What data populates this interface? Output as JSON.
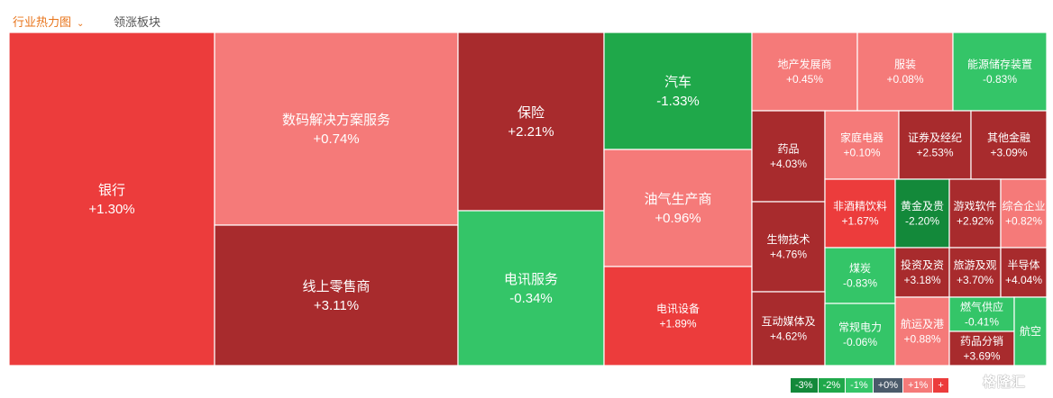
{
  "tabs": [
    {
      "label": "行业热力图",
      "active": true
    },
    {
      "label": "领涨板块",
      "active": false
    }
  ],
  "colors": {
    "up_strong": "#a82b2d",
    "up_medium": "#ec3c3c",
    "up_light": "#f57a79",
    "down_strong": "#13893a",
    "down_medium": "#1fa84a",
    "down_light": "#34c568",
    "tab_active": "#e8741a"
  },
  "chart_data": {
    "type": "treemap",
    "title": "",
    "cells": [
      {
        "name": "银行",
        "change": "+1.30%",
        "value": 1.3
      },
      {
        "name": "数码解决方案服务",
        "change": "+0.74%",
        "value": 0.74
      },
      {
        "name": "线上零售商",
        "change": "+3.11%",
        "value": 3.11
      },
      {
        "name": "保险",
        "change": "+2.21%",
        "value": 2.21
      },
      {
        "name": "电讯服务",
        "change": "-0.34%",
        "value": -0.34
      },
      {
        "name": "汽车",
        "change": "-1.33%",
        "value": -1.33
      },
      {
        "name": "油气生产商",
        "change": "+0.96%",
        "value": 0.96
      },
      {
        "name": "电讯设备",
        "change": "+1.89%",
        "value": 1.89
      },
      {
        "name": "地产发展商",
        "change": "+0.45%",
        "value": 0.45
      },
      {
        "name": "服装",
        "change": "+0.08%",
        "value": 0.08
      },
      {
        "name": "能源储存装置",
        "change": "-0.83%",
        "value": -0.83
      },
      {
        "name": "药品",
        "change": "+4.03%",
        "value": 4.03
      },
      {
        "name": "家庭电器",
        "change": "+0.10%",
        "value": 0.1
      },
      {
        "name": "证券及经纪",
        "change": "+2.53%",
        "value": 2.53
      },
      {
        "name": "其他金融",
        "change": "+3.09%",
        "value": 3.09
      },
      {
        "name": "生物技术",
        "change": "+4.76%",
        "value": 4.76
      },
      {
        "name": "非酒精饮料",
        "change": "+1.67%",
        "value": 1.67
      },
      {
        "name": "黄金及贵",
        "change": "-2.20%",
        "value": -2.2
      },
      {
        "name": "游戏软件",
        "change": "+2.92%",
        "value": 2.92
      },
      {
        "name": "综合企业",
        "change": "+0.82%",
        "value": 0.82
      },
      {
        "name": "煤炭",
        "change": "-0.83%",
        "value": -0.83
      },
      {
        "name": "投资及资",
        "change": "+3.18%",
        "value": 3.18
      },
      {
        "name": "旅游及观",
        "change": "+3.70%",
        "value": 3.7
      },
      {
        "name": "半导体",
        "change": "+4.04%",
        "value": 4.04
      },
      {
        "name": "互动媒体及",
        "change": "+4.62%",
        "value": 4.62
      },
      {
        "name": "常规电力",
        "change": "-0.06%",
        "value": -0.06
      },
      {
        "name": "航运及港",
        "change": "+0.88%",
        "value": 0.88
      },
      {
        "name": "燃气供应",
        "change": "-0.41%",
        "value": -0.41
      },
      {
        "name": "药品分销",
        "change": "+3.69%",
        "value": 3.69
      },
      {
        "name": "航空",
        "change": "",
        "value": null
      }
    ],
    "legend": [
      {
        "label": "-3%",
        "color": "#13893a"
      },
      {
        "label": "-2%",
        "color": "#1fa84a"
      },
      {
        "label": "-1%",
        "color": "#34c568"
      },
      {
        "label": "+0%",
        "color": "#4a5a6a"
      },
      {
        "label": "+1%",
        "color": "#f57a79"
      },
      {
        "label": "+",
        "color": "#ec3c3c"
      }
    ]
  },
  "watermark": {
    "text": "格隆汇"
  }
}
